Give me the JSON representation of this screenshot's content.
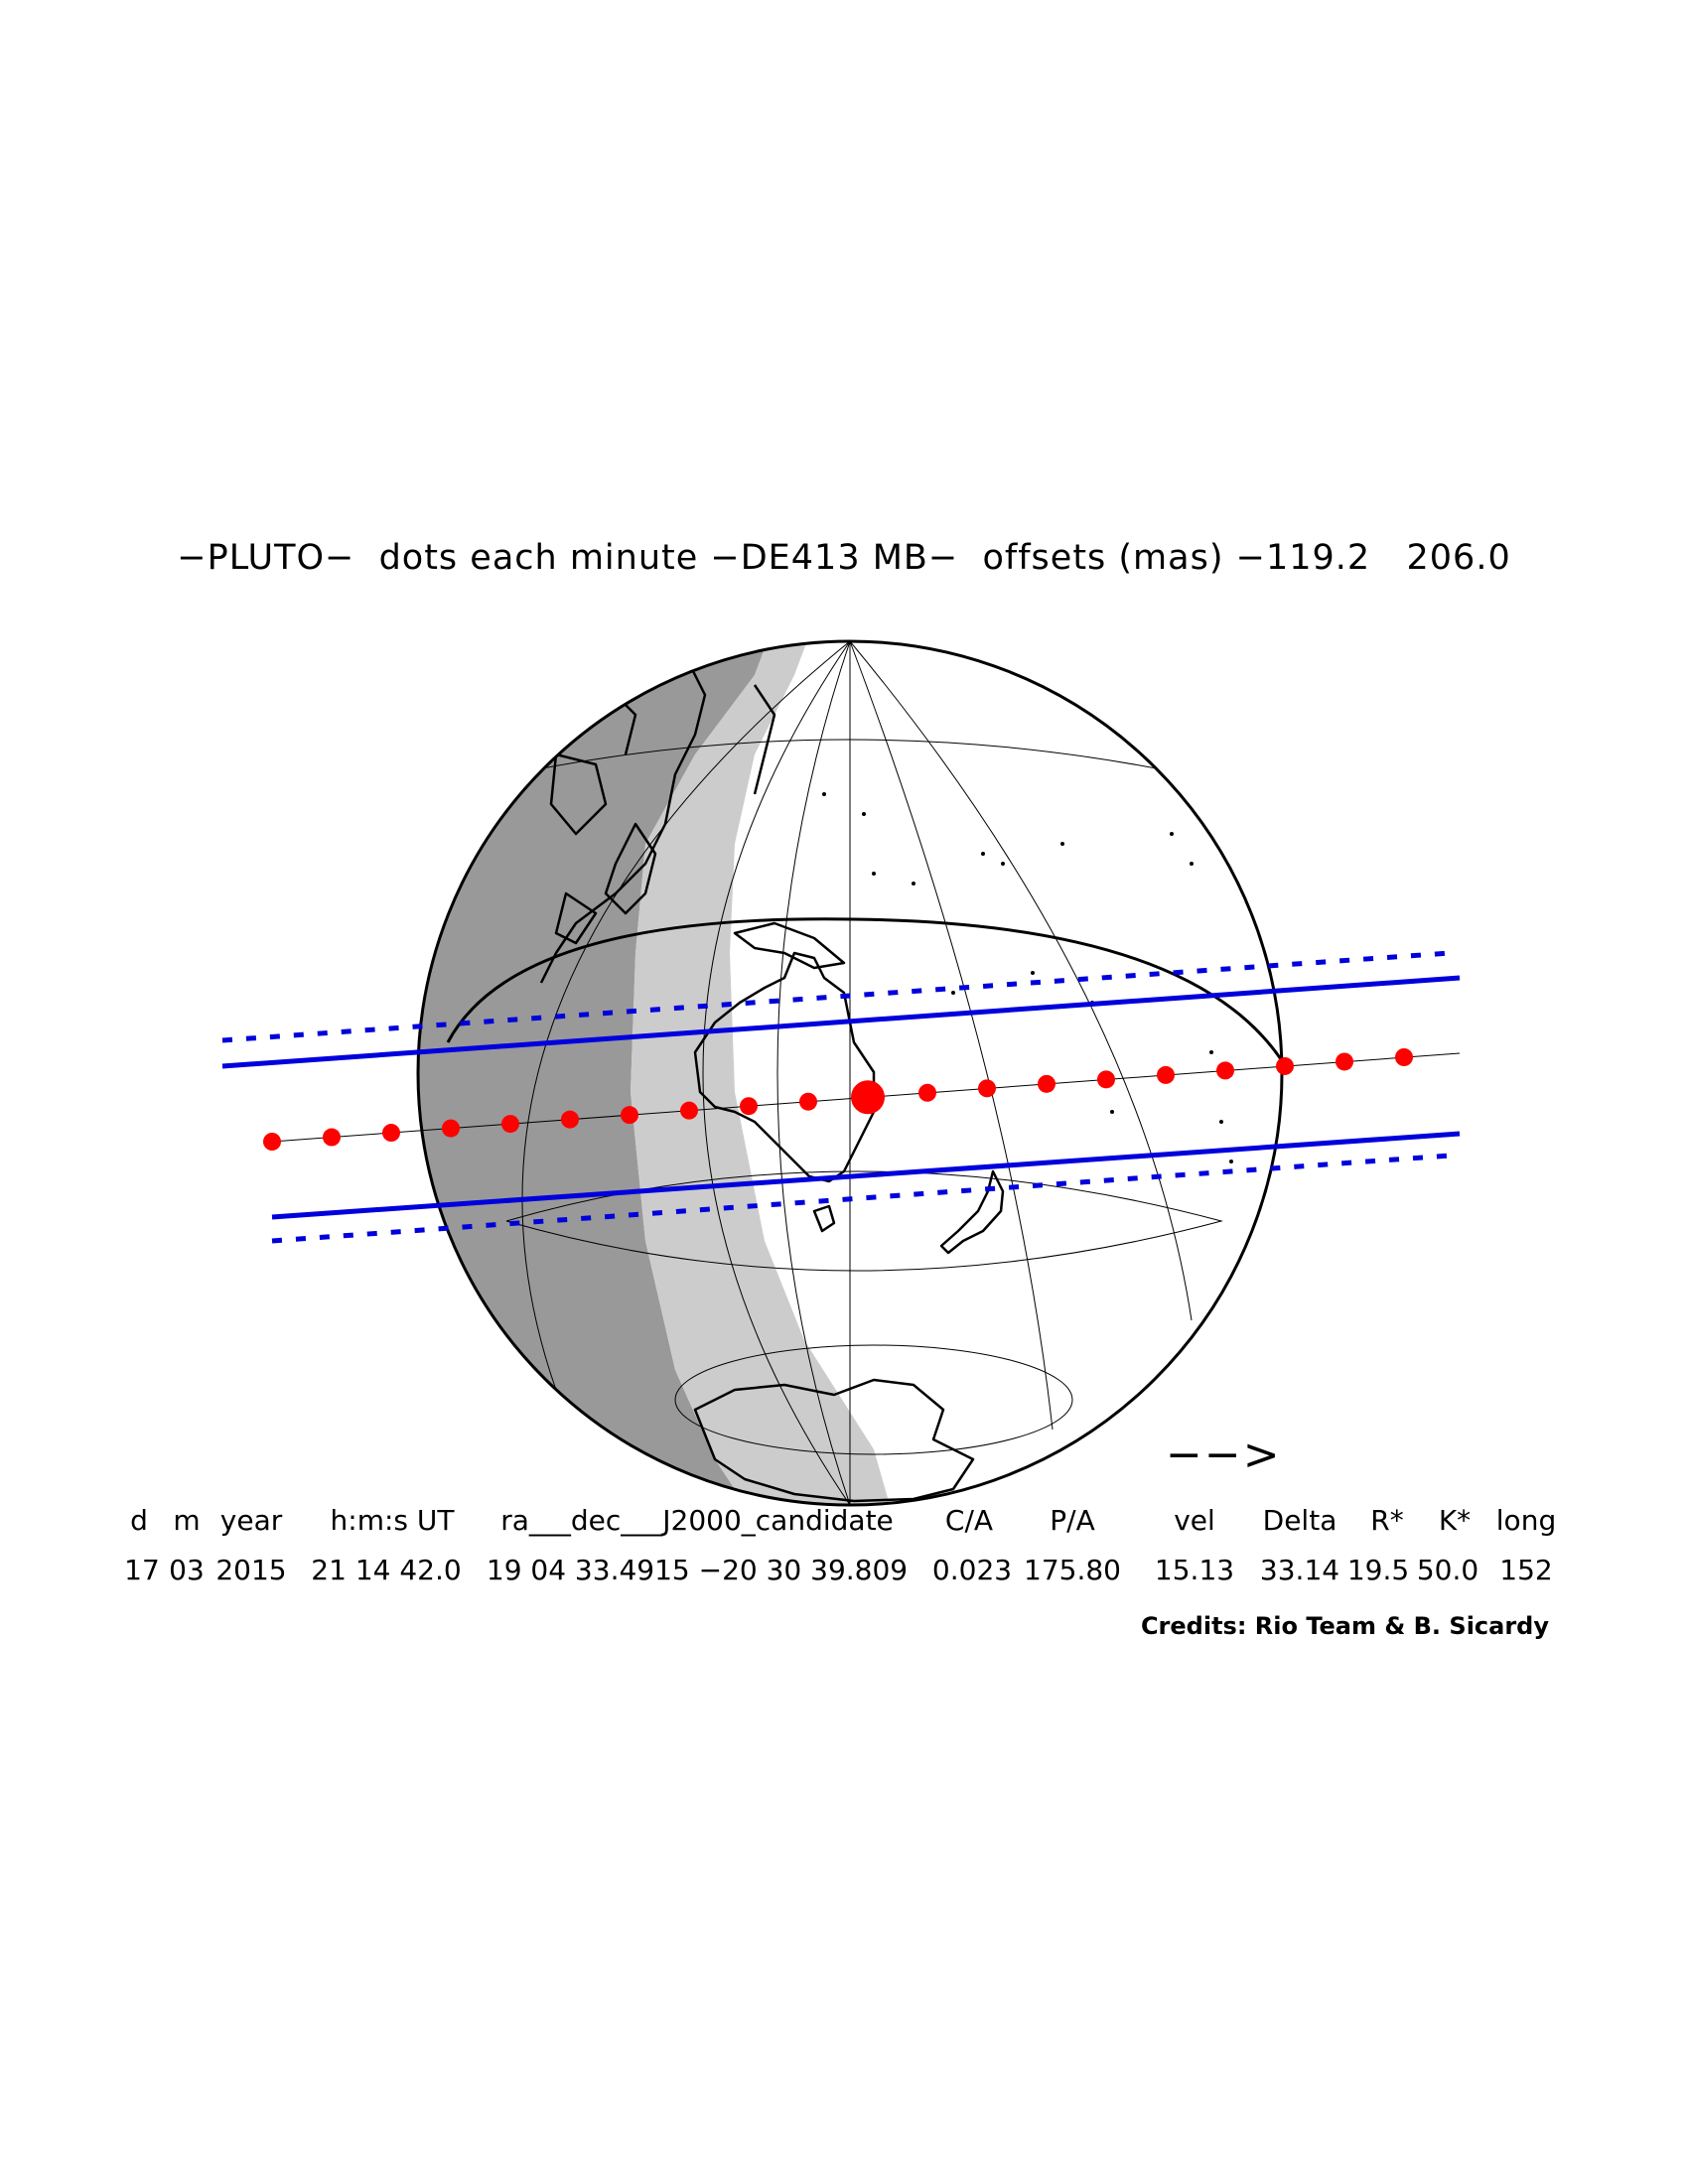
{
  "title": "−PLUTO−  dots each minute −DE413 MB−  offsets (mas) −119.2   206.0",
  "direction_arrow": "−−>",
  "table": {
    "headers": [
      "d",
      "m",
      "year",
      "h:m:s UT",
      "ra___dec___J2000_candidate",
      "C/A",
      "P/A",
      "vel",
      "Delta",
      "R*",
      "K*",
      "long"
    ],
    "values": [
      "17",
      "03",
      "2015",
      "21 14 42.0",
      "19 04 33.4915 −20 30 39.809",
      "0.023",
      "175.80",
      "15.13",
      "33.14",
      "19.5",
      "50.0",
      "152"
    ]
  },
  "credits": "Credits: Rio Team & B. Sicardy",
  "colors": {
    "shadow_path": "#0000dd",
    "dots": "#ff0000",
    "night": "#999999",
    "twilight": "#cccccc",
    "land_outline": "#000000"
  },
  "map": {
    "dot_interval": "each minute",
    "closest_approach_dot": "large red dot over eastern Australia",
    "dot_count": 20
  }
}
